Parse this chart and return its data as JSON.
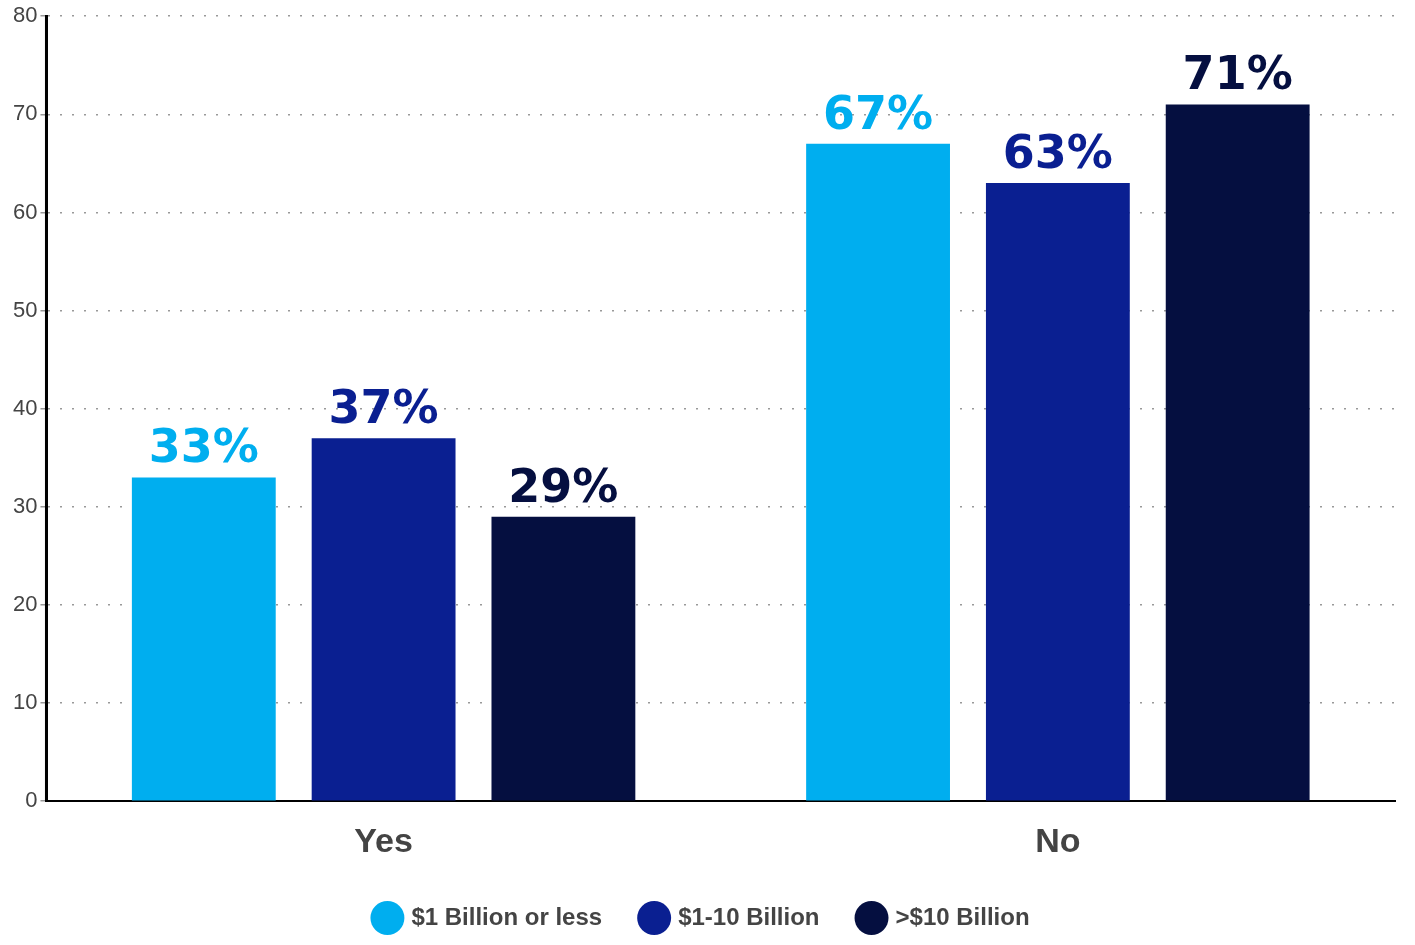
{
  "chart_data": {
    "type": "bar",
    "categories": [
      "Yes",
      "No"
    ],
    "series": [
      {
        "name": "$1 Billion or less",
        "color": "#00aeef",
        "values": [
          33,
          67
        ],
        "value_labels": [
          "33%",
          "67%"
        ]
      },
      {
        "name": "$1-10 Billion",
        "color": "#0a1f91",
        "values": [
          37,
          63
        ],
        "value_labels": [
          "37%",
          "63%"
        ]
      },
      {
        "name": ">$10 Billion",
        "color": "#050f40",
        "values": [
          29,
          71
        ],
        "value_labels": [
          "29%",
          "71%"
        ]
      }
    ],
    "ylim": [
      0,
      80
    ],
    "yticks": [
      0,
      10,
      20,
      30,
      40,
      50,
      60,
      70,
      80
    ],
    "grid": "y",
    "legend": "bottom"
  }
}
